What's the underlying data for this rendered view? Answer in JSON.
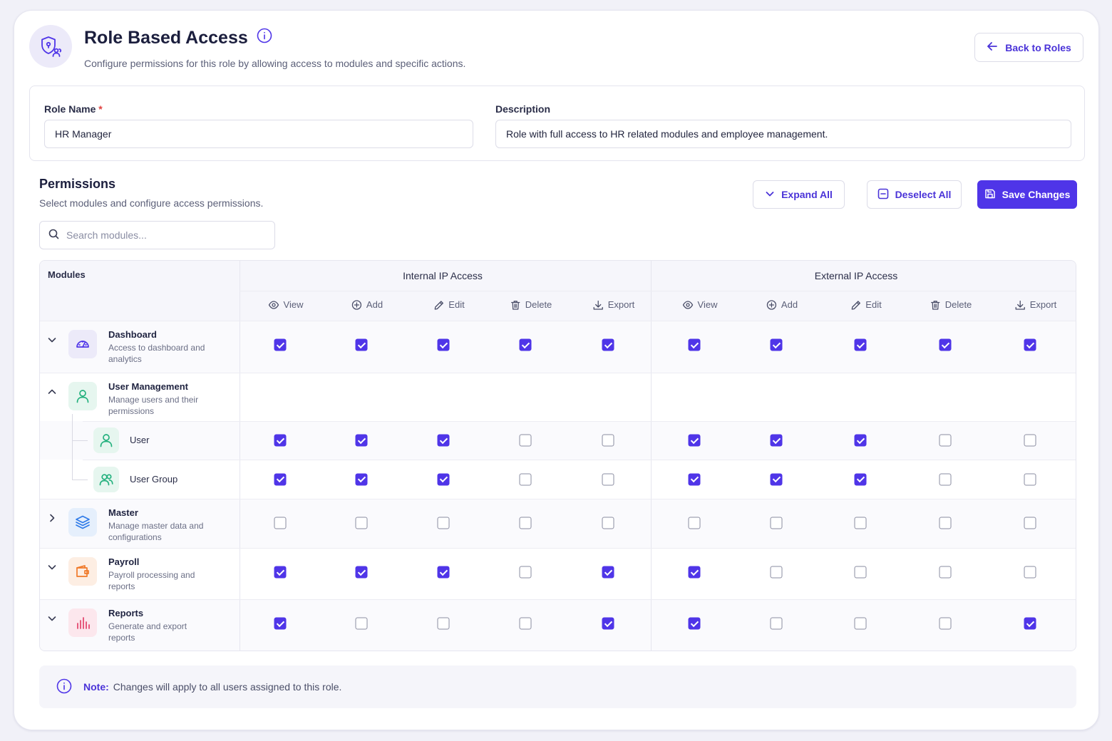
{
  "header": {
    "title": "Role Based Access",
    "subtitle": "Configure permissions for this role by allowing access to modules and specific actions.",
    "back_label": "Back to Roles"
  },
  "role": {
    "name_label": "Role Name",
    "required_mark": "*",
    "name_value": "HR Manager",
    "description_label": "Description",
    "description_value": "Role with full access to HR related modules and employee management."
  },
  "permissions": {
    "title": "Permissions",
    "subtitle": "Select modules and configure access permissions.",
    "expand_all_label": "Expand All",
    "deselect_all_label": "Deselect All",
    "save_label": "Save Changes",
    "search_placeholder": "Search modules..."
  },
  "table": {
    "modules_header": "Modules",
    "groups": [
      "Internal IP Access",
      "External IP Access"
    ],
    "actions": [
      "View",
      "Add",
      "Edit",
      "Delete",
      "Export"
    ],
    "action_icons": [
      "eye-icon",
      "plus-circle-icon",
      "pencil-icon",
      "trash-icon",
      "download-icon"
    ],
    "rows": [
      {
        "kind": "module",
        "name": "Dashboard",
        "desc": "Access to dashboard and analytics",
        "icon": "gauge-icon",
        "expanded": false,
        "internal": [
          true,
          true,
          true,
          true,
          true
        ],
        "external": [
          true,
          true,
          true,
          true,
          true
        ]
      },
      {
        "kind": "module",
        "name": "User Management",
        "desc": "Manage users and their permissions",
        "icon": "user-icon",
        "expanded": true,
        "internal": null,
        "external": null
      },
      {
        "kind": "sub",
        "name": "User",
        "icon": "user-icon",
        "internal": [
          true,
          true,
          true,
          false,
          false
        ],
        "external": [
          true,
          true,
          true,
          false,
          false
        ]
      },
      {
        "kind": "sub",
        "name": "User Group",
        "icon": "users-icon",
        "internal": [
          true,
          true,
          true,
          false,
          false
        ],
        "external": [
          true,
          true,
          true,
          false,
          false
        ]
      },
      {
        "kind": "module",
        "name": "Master",
        "desc": "Manage master data and configurations",
        "icon": "layers-icon",
        "expanded": false,
        "internal": [
          false,
          false,
          false,
          false,
          false
        ],
        "external": [
          false,
          false,
          false,
          false,
          false
        ]
      },
      {
        "kind": "module",
        "name": "Payroll",
        "desc": "Payroll processing and reports",
        "icon": "wallet-icon",
        "expanded": false,
        "internal": [
          true,
          true,
          true,
          false,
          true
        ],
        "external": [
          true,
          false,
          false,
          false,
          false
        ]
      },
      {
        "kind": "module",
        "name": "Reports",
        "desc": "Generate and export reports",
        "icon": "bar-chart-icon",
        "expanded": false,
        "internal": [
          true,
          false,
          false,
          false,
          true
        ],
        "external": [
          true,
          false,
          false,
          false,
          true
        ]
      }
    ]
  },
  "note": {
    "label": "Note:",
    "text": "Changes will apply to all users assigned to this role."
  },
  "colors": {
    "accent": "#4f35e8",
    "dashboard": "#4f35e8",
    "users": "#22b07d",
    "master": "#2f7be8",
    "payroll": "#f07a2a",
    "reports": "#e2426a"
  }
}
